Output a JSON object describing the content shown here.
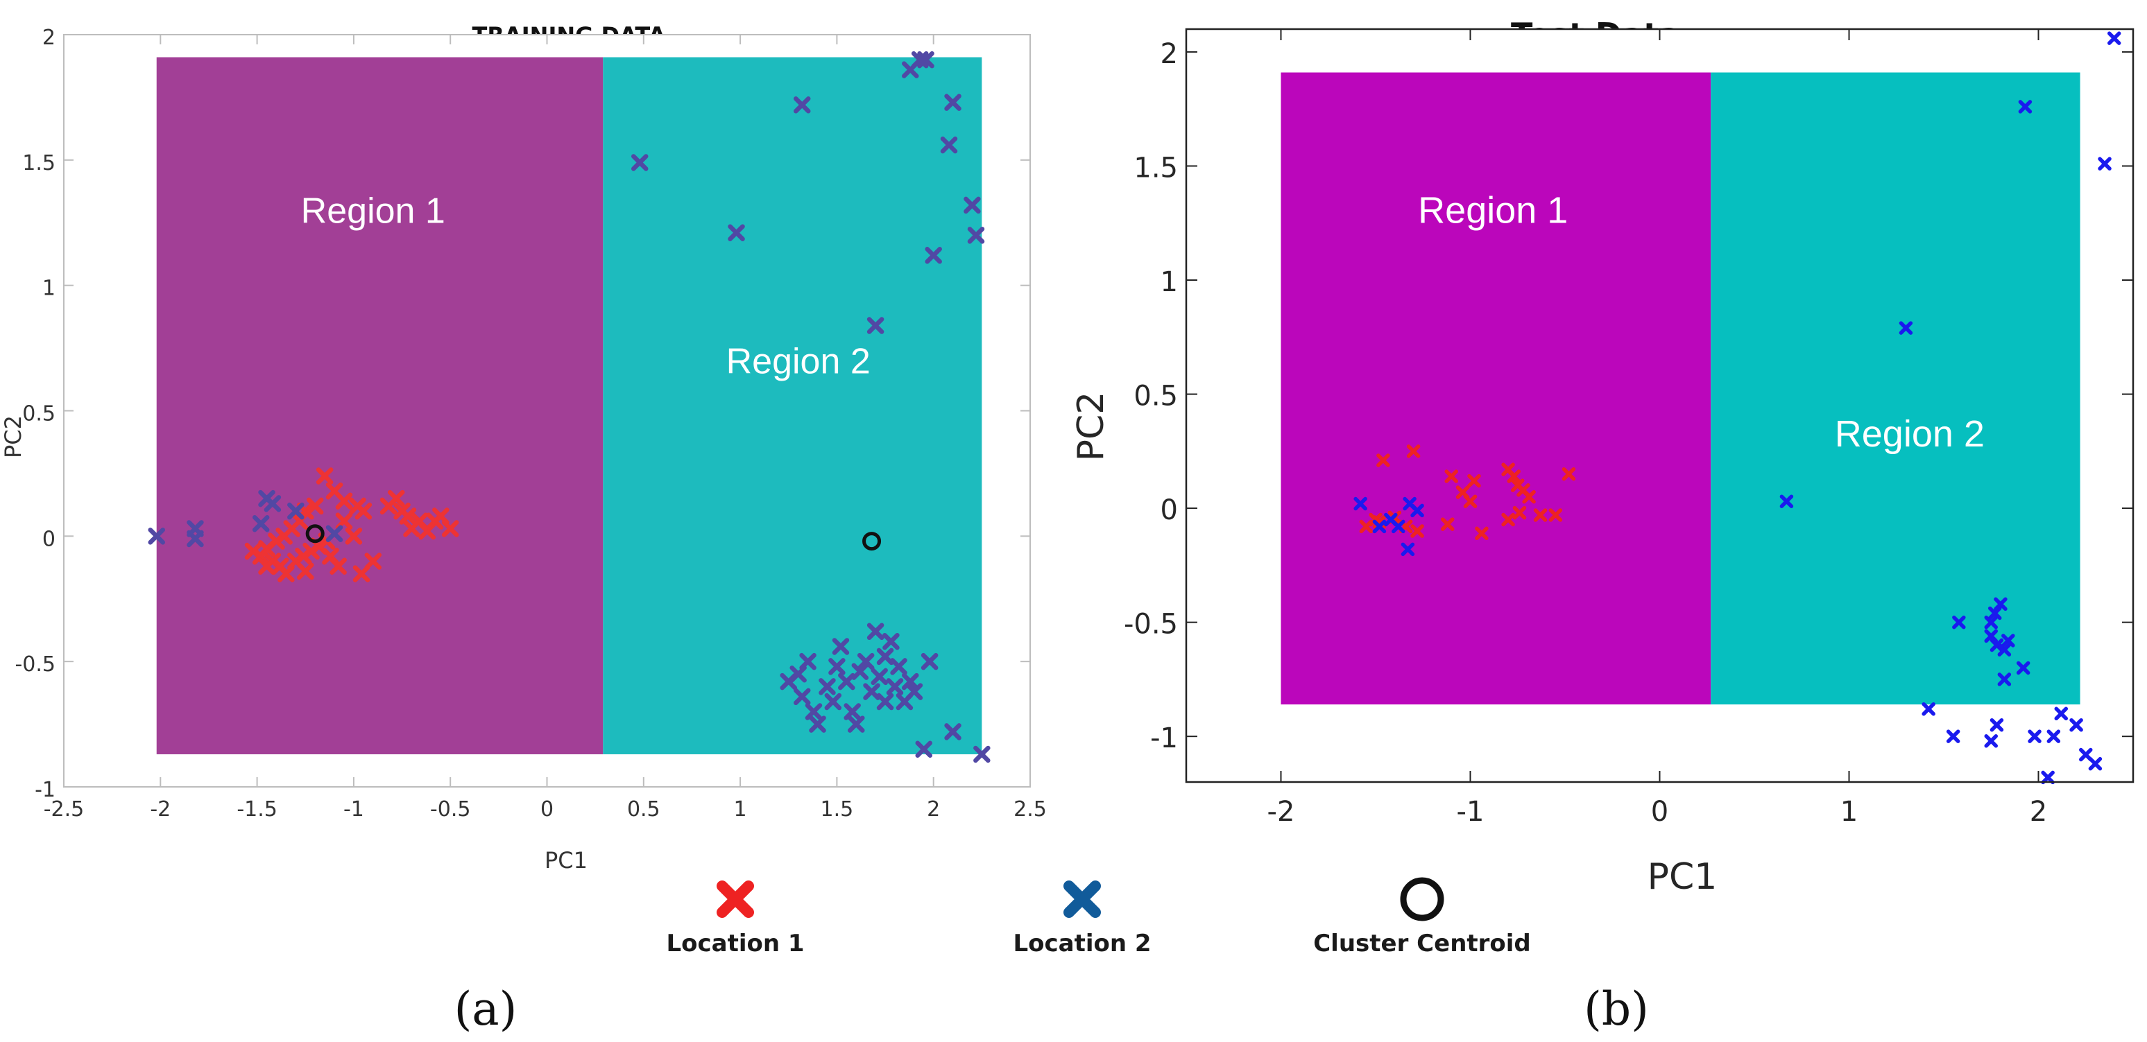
{
  "chart_data": [
    {
      "type": "scatter",
      "panel": "a",
      "title": "TRAINING DATA",
      "xlabel": "PC1",
      "ylabel": "PC2",
      "xlim": [
        -2.5,
        2.5
      ],
      "ylim": [
        -1,
        2
      ],
      "xticks": [
        "-2.5",
        "-2",
        "-1.5",
        "-1",
        "-0.5",
        "0",
        "0.5",
        "1",
        "1.5",
        "2",
        "2.5"
      ],
      "yticks": [
        "-1",
        "-0.5",
        "0",
        "0.5",
        "1",
        "1.5",
        "2"
      ],
      "regions": [
        {
          "name": "Region 1",
          "x": [
            -2.02,
            0.29
          ],
          "y": [
            -0.87,
            1.91
          ],
          "color": "#a23f96"
        },
        {
          "name": "Region 2",
          "x": [
            0.29,
            2.25
          ],
          "y": [
            -0.87,
            1.91
          ],
          "color": "#1dbbbe"
        }
      ],
      "series": [
        {
          "name": "Location 1",
          "color": "#ee3333",
          "points": [
            [
              -1.15,
              0.24
            ],
            [
              -1.1,
              0.18
            ],
            [
              -1.05,
              0.14
            ],
            [
              -0.98,
              0.12
            ],
            [
              -0.95,
              0.1
            ],
            [
              -1.2,
              0.12
            ],
            [
              -1.25,
              0.1
            ],
            [
              -1.28,
              0.06
            ],
            [
              -1.32,
              0.03
            ],
            [
              -1.36,
              0.0
            ],
            [
              -1.4,
              -0.02
            ],
            [
              -1.45,
              -0.05
            ],
            [
              -1.52,
              -0.06
            ],
            [
              -1.48,
              -0.08
            ],
            [
              -1.42,
              -0.1
            ],
            [
              -1.38,
              -0.12
            ],
            [
              -1.35,
              -0.15
            ],
            [
              -1.3,
              -0.1
            ],
            [
              -1.26,
              -0.08
            ],
            [
              -1.22,
              -0.06
            ],
            [
              -1.18,
              -0.04
            ],
            [
              -1.12,
              -0.08
            ],
            [
              -1.08,
              -0.12
            ],
            [
              -1.14,
              -0.02
            ],
            [
              -1.05,
              0.06
            ],
            [
              -1.0,
              0.0
            ],
            [
              -0.96,
              -0.15
            ],
            [
              -0.9,
              -0.1
            ],
            [
              -1.25,
              -0.14
            ],
            [
              -1.45,
              -0.12
            ],
            [
              -0.82,
              0.12
            ],
            [
              -0.78,
              0.15
            ],
            [
              -0.75,
              0.1
            ],
            [
              -0.72,
              0.08
            ],
            [
              -0.7,
              0.03
            ],
            [
              -0.66,
              0.06
            ],
            [
              -0.62,
              0.02
            ],
            [
              -0.58,
              0.06
            ],
            [
              -0.55,
              0.08
            ],
            [
              -0.5,
              0.03
            ]
          ]
        },
        {
          "name": "Location 2",
          "color": "#5148a4",
          "points": [
            [
              -2.02,
              0.0
            ],
            [
              -1.82,
              -0.01
            ],
            [
              -1.82,
              0.03
            ],
            [
              -1.45,
              0.15
            ],
            [
              -1.42,
              0.13
            ],
            [
              -1.48,
              0.05
            ],
            [
              -1.1,
              0.01
            ],
            [
              -1.3,
              0.1
            ],
            [
              0.48,
              1.49
            ],
            [
              0.98,
              1.21
            ],
            [
              1.32,
              1.72
            ],
            [
              1.7,
              0.84
            ],
            [
              1.88,
              1.86
            ],
            [
              1.93,
              1.9
            ],
            [
              1.96,
              1.9
            ],
            [
              2.0,
              1.12
            ],
            [
              2.08,
              1.56
            ],
            [
              2.1,
              1.73
            ],
            [
              2.2,
              1.32
            ],
            [
              2.22,
              1.2
            ],
            [
              2.25,
              -0.87
            ],
            [
              1.25,
              -0.58
            ],
            [
              1.3,
              -0.55
            ],
            [
              1.32,
              -0.64
            ],
            [
              1.35,
              -0.5
            ],
            [
              1.38,
              -0.7
            ],
            [
              1.4,
              -0.75
            ],
            [
              1.45,
              -0.6
            ],
            [
              1.48,
              -0.66
            ],
            [
              1.5,
              -0.52
            ],
            [
              1.52,
              -0.44
            ],
            [
              1.55,
              -0.58
            ],
            [
              1.58,
              -0.7
            ],
            [
              1.62,
              -0.54
            ],
            [
              1.65,
              -0.5
            ],
            [
              1.68,
              -0.62
            ],
            [
              1.7,
              -0.38
            ],
            [
              1.72,
              -0.56
            ],
            [
              1.75,
              -0.48
            ],
            [
              1.78,
              -0.42
            ],
            [
              1.8,
              -0.6
            ],
            [
              1.82,
              -0.52
            ],
            [
              1.85,
              -0.66
            ],
            [
              1.88,
              -0.58
            ],
            [
              1.9,
              -0.62
            ],
            [
              1.95,
              -0.85
            ],
            [
              1.98,
              -0.5
            ],
            [
              2.1,
              -0.78
            ],
            [
              1.6,
              -0.75
            ],
            [
              1.75,
              -0.66
            ]
          ]
        },
        {
          "name": "Cluster Centroid",
          "color": "#111111",
          "points": [
            [
              -1.2,
              0.01
            ],
            [
              1.68,
              -0.02
            ]
          ]
        }
      ]
    },
    {
      "type": "scatter",
      "panel": "b",
      "title": "Test Data",
      "xlabel": "PC1",
      "ylabel": "PC2",
      "xlim": [
        -2.5,
        2.5
      ],
      "ylim": [
        -1.2,
        2.1
      ],
      "xticks": [
        "-2",
        "-1",
        "0",
        "1",
        "2"
      ],
      "yticks": [
        "-1",
        "-0.5",
        "0",
        "0.5",
        "1",
        "1.5",
        "2"
      ],
      "regions": [
        {
          "name": "Region 1",
          "x": [
            -2.0,
            0.27
          ],
          "y": [
            -0.86,
            1.91
          ],
          "color": "#bb06bb"
        },
        {
          "name": "Region 2",
          "x": [
            0.27,
            2.22
          ],
          "y": [
            -0.86,
            1.91
          ],
          "color": "#06bfbf"
        }
      ],
      "series": [
        {
          "name": "Location 1",
          "color": "#ee2222",
          "points": [
            [
              -1.3,
              0.25
            ],
            [
              -1.46,
              0.21
            ],
            [
              -1.5,
              -0.05
            ],
            [
              -1.55,
              -0.08
            ],
            [
              -1.48,
              -0.06
            ],
            [
              -1.4,
              -0.04
            ],
            [
              -1.34,
              -0.08
            ],
            [
              -1.28,
              -0.1
            ],
            [
              -1.12,
              -0.07
            ],
            [
              -1.1,
              0.14
            ],
            [
              -1.04,
              0.07
            ],
            [
              -1.0,
              0.03
            ],
            [
              -0.98,
              0.12
            ],
            [
              -0.94,
              -0.11
            ],
            [
              -0.8,
              0.17
            ],
            [
              -0.77,
              0.14
            ],
            [
              -0.75,
              0.1
            ],
            [
              -0.72,
              0.08
            ],
            [
              -0.69,
              0.05
            ],
            [
              -0.74,
              -0.02
            ],
            [
              -0.8,
              -0.05
            ],
            [
              -0.63,
              -0.03
            ],
            [
              -0.55,
              -0.03
            ],
            [
              -0.48,
              0.15
            ]
          ]
        },
        {
          "name": "Location 2",
          "color": "#1a1aee",
          "points": [
            [
              -1.58,
              0.02
            ],
            [
              -1.42,
              -0.05
            ],
            [
              -1.38,
              -0.08
            ],
            [
              -1.32,
              0.02
            ],
            [
              -1.28,
              -0.01
            ],
            [
              -1.33,
              -0.18
            ],
            [
              -1.48,
              -0.08
            ],
            [
              0.67,
              0.03
            ],
            [
              1.3,
              0.79
            ],
            [
              1.93,
              1.76
            ],
            [
              2.35,
              1.51
            ],
            [
              2.4,
              2.06
            ],
            [
              1.58,
              -0.5
            ],
            [
              1.75,
              -0.5
            ],
            [
              1.77,
              -0.46
            ],
            [
              1.8,
              -0.42
            ],
            [
              1.75,
              -0.56
            ],
            [
              1.78,
              -0.6
            ],
            [
              1.82,
              -0.62
            ],
            [
              1.84,
              -0.58
            ],
            [
              1.82,
              -0.75
            ],
            [
              1.92,
              -0.7
            ],
            [
              1.42,
              -0.88
            ],
            [
              1.55,
              -1.0
            ],
            [
              1.75,
              -1.02
            ],
            [
              1.78,
              -0.95
            ],
            [
              1.98,
              -1.0
            ],
            [
              2.05,
              -1.18
            ],
            [
              2.12,
              -0.9
            ],
            [
              2.2,
              -0.95
            ],
            [
              2.25,
              -1.08
            ],
            [
              2.3,
              -1.12
            ],
            [
              2.08,
              -1.0
            ]
          ]
        }
      ]
    }
  ],
  "legend": [
    {
      "label": "Location 1",
      "marker": "x",
      "color": "#ee2222"
    },
    {
      "label": "Location 2",
      "marker": "x",
      "color": "#115b9a"
    },
    {
      "label": "Cluster Centroid",
      "marker": "o",
      "color": "#111111"
    }
  ],
  "captions": [
    "(a)",
    "(b)"
  ]
}
